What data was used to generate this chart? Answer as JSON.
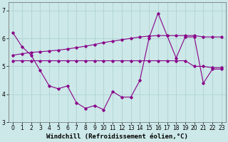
{
  "xlabel": "Windchill (Refroidissement éolien,°C)",
  "s1_x": [
    0,
    1,
    2,
    3,
    4,
    5,
    6,
    7,
    8,
    9,
    10,
    11,
    12,
    13,
    14,
    15,
    16,
    17,
    18,
    19,
    20,
    21,
    22,
    23
  ],
  "s1_y": [
    6.2,
    5.7,
    5.4,
    4.85,
    4.3,
    4.2,
    4.3,
    3.7,
    3.5,
    3.6,
    3.45,
    4.1,
    3.9,
    3.9,
    4.5,
    6.0,
    6.9,
    6.1,
    5.3,
    6.05,
    6.05,
    4.4,
    4.9,
    4.9
  ],
  "s2_x": [
    0,
    1,
    2,
    3,
    4,
    5,
    6,
    7,
    8,
    9,
    10,
    11,
    12,
    13,
    14,
    15,
    16,
    17,
    18,
    19,
    20,
    21,
    22,
    23
  ],
  "s2_y": [
    5.2,
    5.2,
    5.2,
    5.2,
    5.2,
    5.2,
    5.2,
    5.2,
    5.2,
    5.2,
    5.2,
    5.2,
    5.2,
    5.2,
    5.2,
    5.2,
    5.2,
    5.2,
    5.2,
    5.2,
    5.0,
    5.0,
    4.95,
    4.95
  ],
  "s3_x": [
    0,
    1,
    2,
    3,
    4,
    5,
    6,
    7,
    8,
    9,
    10,
    11,
    12,
    13,
    14,
    15,
    16,
    17,
    18,
    19,
    20,
    21,
    22,
    23
  ],
  "s3_y": [
    5.4,
    5.45,
    5.5,
    5.52,
    5.55,
    5.58,
    5.62,
    5.67,
    5.72,
    5.78,
    5.85,
    5.9,
    5.95,
    6.0,
    6.05,
    6.08,
    6.1,
    6.1,
    6.1,
    6.1,
    6.1,
    6.05,
    6.05,
    6.05
  ],
  "line_color": "#880088",
  "bg_color": "#cce8e8",
  "grid_color": "#aacfcf",
  "ylim": [
    3.0,
    7.3
  ],
  "yticks": [
    3,
    4,
    5,
    6,
    7
  ],
  "tick_fontsize": 5.5,
  "xlabel_fontsize": 6.5
}
